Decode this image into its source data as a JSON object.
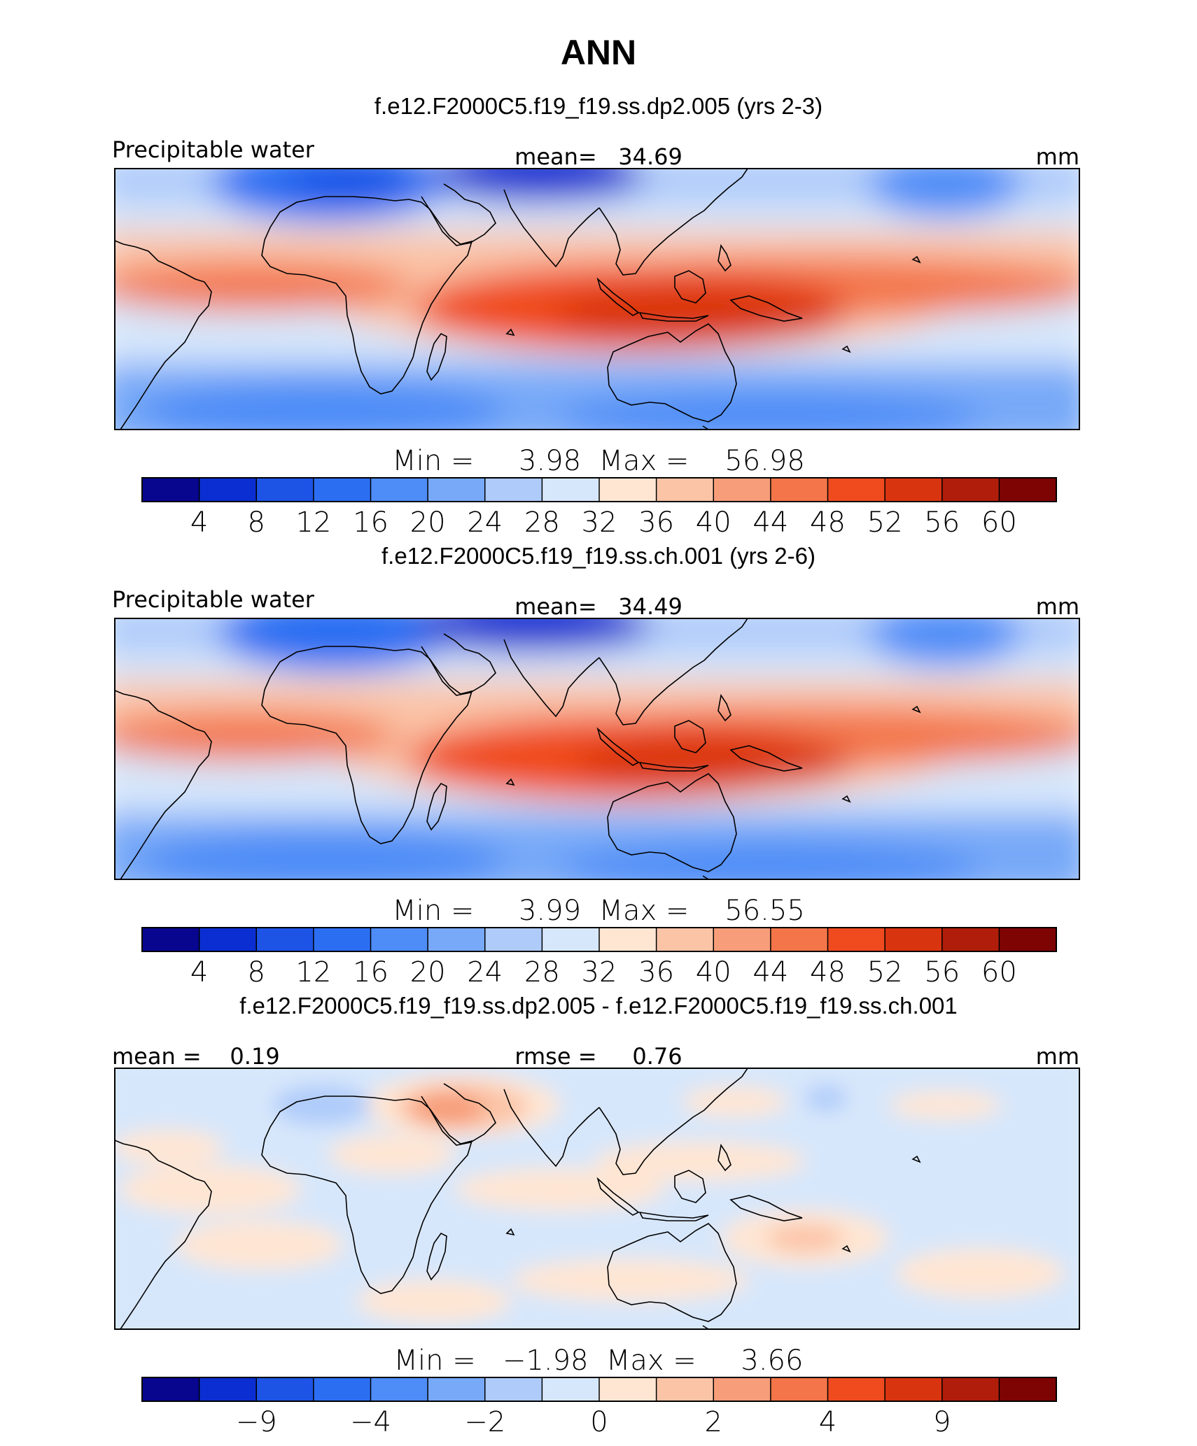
{
  "title": "ANN",
  "chart_data": [
    {
      "type": "heatmap",
      "subtitle": "f.e12.F2000C5.f19_f19.ss.dp2.005 (yrs 2-3)",
      "left_label": "Precipitable water",
      "center_label": "mean=   34.69",
      "units": "mm",
      "stats": "Min =     3.98  Max =    56.98",
      "colorbar": {
        "colors": [
          "#08068f",
          "#0a2ed1",
          "#1d54e6",
          "#2c6ef2",
          "#4e8cf7",
          "#77a9f8",
          "#aecbfa",
          "#d7e7fb",
          "#ffe6d3",
          "#fbc4a7",
          "#f79d7a",
          "#f37549",
          "#f04b1f",
          "#d93410",
          "#b01d0a",
          "#7e0404"
        ],
        "ticks": [
          "4",
          "8",
          "12",
          "16",
          "20",
          "24",
          "28",
          "32",
          "36",
          "40",
          "44",
          "48",
          "52",
          "56",
          "60"
        ],
        "tick_boundaries": [
          1,
          2,
          3,
          4,
          5,
          6,
          7,
          8,
          9,
          10,
          11,
          12,
          13,
          14,
          15
        ]
      }
    },
    {
      "type": "heatmap",
      "subtitle": "f.e12.F2000C5.f19_f19.ss.ch.001 (yrs 2-6)",
      "left_label": "Precipitable water",
      "center_label": "mean=   34.49",
      "units": "mm",
      "stats": "Min =     3.99  Max =    56.55",
      "colorbar": {
        "colors": [
          "#08068f",
          "#0a2ed1",
          "#1d54e6",
          "#2c6ef2",
          "#4e8cf7",
          "#77a9f8",
          "#aecbfa",
          "#d7e7fb",
          "#ffe6d3",
          "#fbc4a7",
          "#f79d7a",
          "#f37549",
          "#f04b1f",
          "#d93410",
          "#b01d0a",
          "#7e0404"
        ],
        "ticks": [
          "4",
          "8",
          "12",
          "16",
          "20",
          "24",
          "28",
          "32",
          "36",
          "40",
          "44",
          "48",
          "52",
          "56",
          "60"
        ],
        "tick_boundaries": [
          1,
          2,
          3,
          4,
          5,
          6,
          7,
          8,
          9,
          10,
          11,
          12,
          13,
          14,
          15
        ]
      }
    },
    {
      "type": "heatmap",
      "subtitle": "f.e12.F2000C5.f19_f19.ss.dp2.005 - f.e12.F2000C5.f19_f19.ss.ch.001",
      "left_label": "mean =    0.19",
      "center_label": "rmse =     0.76",
      "units": "mm",
      "stats": "Min =   −1.98  Max =     3.66",
      "colorbar": {
        "colors": [
          "#08068f",
          "#0a2ed1",
          "#1d54e6",
          "#2c6ef2",
          "#4e8cf7",
          "#77a9f8",
          "#aecbfa",
          "#d7e7fb",
          "#ffe6d3",
          "#fbc4a7",
          "#f79d7a",
          "#f37549",
          "#f04b1f",
          "#d93410",
          "#b01d0a",
          "#7e0404"
        ],
        "ticks": [
          "−9",
          "−4",
          "−2",
          "0",
          "2",
          "4",
          "9"
        ],
        "tick_boundaries": [
          2,
          4,
          6,
          8,
          10,
          12,
          14
        ]
      }
    }
  ]
}
